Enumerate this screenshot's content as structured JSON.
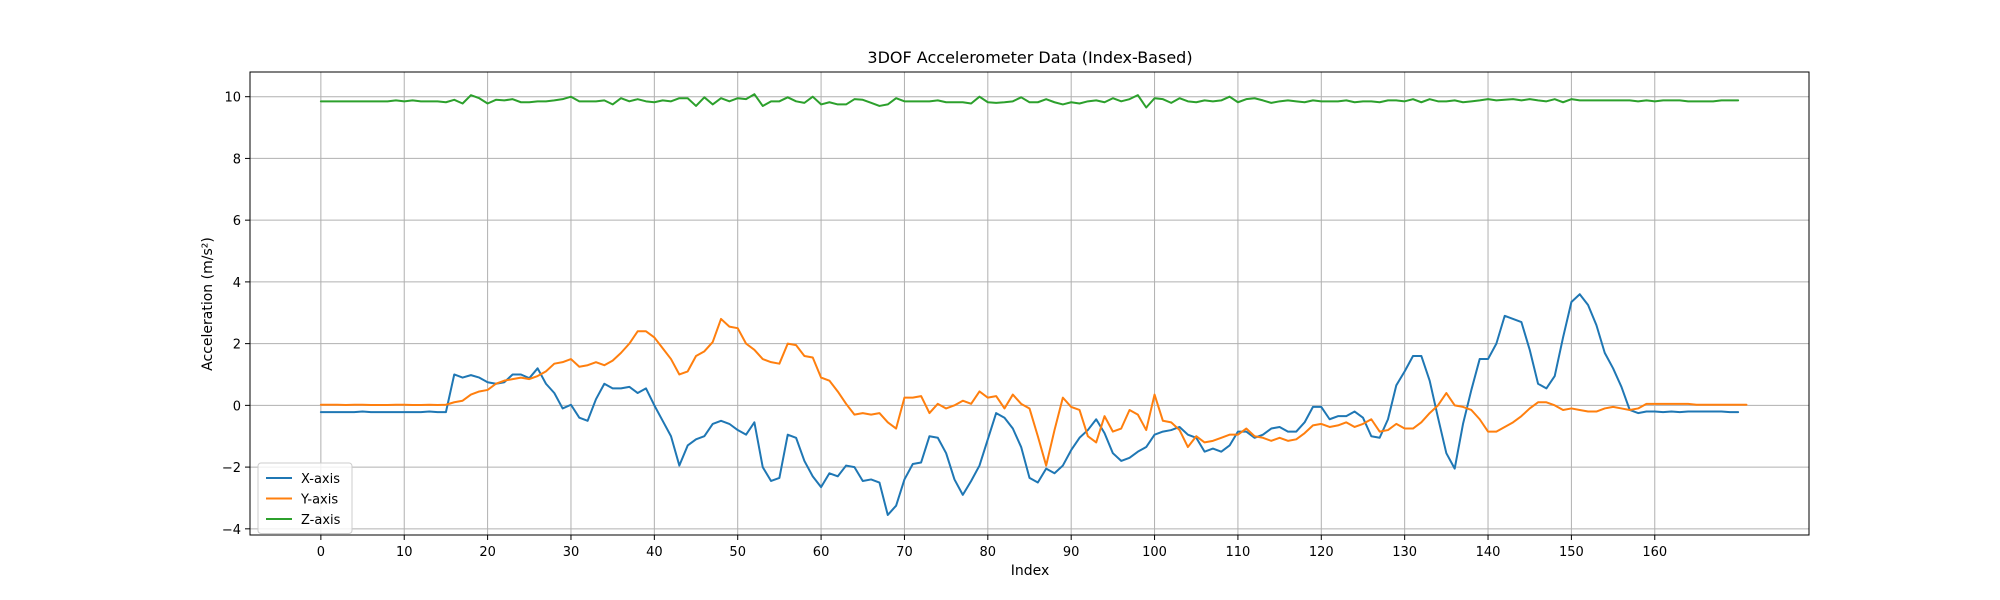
{
  "chart_data": {
    "type": "line",
    "title": "3DOF Accelerometer Data (Index-Based)",
    "xlabel": "Index",
    "ylabel": "Acceleration (m/s²)",
    "xlim": [
      -8.5,
      178.5
    ],
    "ylim": [
      -4.2,
      10.8
    ],
    "xticks": [
      0,
      10,
      20,
      30,
      40,
      50,
      60,
      70,
      80,
      90,
      100,
      110,
      120,
      130,
      140,
      150,
      160
    ],
    "yticks": [
      -4,
      -2,
      0,
      2,
      4,
      6,
      8,
      10
    ],
    "grid": true,
    "legend_position": "lower-left",
    "series": [
      {
        "name": "X-axis",
        "color": "#1f77b4",
        "values": [
          -0.22,
          -0.22,
          -0.22,
          -0.22,
          -0.22,
          -0.2,
          -0.22,
          -0.22,
          -0.22,
          -0.22,
          -0.22,
          -0.22,
          -0.22,
          -0.2,
          -0.22,
          -0.22,
          1.0,
          0.9,
          0.98,
          0.9,
          0.75,
          0.7,
          0.75,
          1.0,
          1.0,
          0.88,
          1.2,
          0.7,
          0.4,
          -0.1,
          0.02,
          -0.4,
          -0.5,
          0.2,
          0.7,
          0.55,
          0.55,
          0.6,
          0.4,
          0.55,
          0.0,
          -0.5,
          -1.0,
          -1.95,
          -1.3,
          -1.1,
          -1.0,
          -0.6,
          -0.5,
          -0.6,
          -0.8,
          -0.95,
          -0.55,
          -2.0,
          -2.45,
          -2.35,
          -0.95,
          -1.05,
          -1.8,
          -2.3,
          -2.65,
          -2.2,
          -2.3,
          -1.95,
          -2.0,
          -2.45,
          -2.4,
          -2.5,
          -3.55,
          -3.25,
          -2.4,
          -1.9,
          -1.85,
          -1.0,
          -1.05,
          -1.55,
          -2.4,
          -2.9,
          -2.45,
          -1.95,
          -1.1,
          -0.25,
          -0.4,
          -0.75,
          -1.35,
          -2.35,
          -2.5,
          -2.05,
          -2.2,
          -1.95,
          -1.45,
          -1.05,
          -0.8,
          -0.45,
          -0.9,
          -1.55,
          -1.8,
          -1.7,
          -1.5,
          -1.35,
          -0.95,
          -0.85,
          -0.8,
          -0.7,
          -0.95,
          -1.05,
          -1.5,
          -1.4,
          -1.5,
          -1.3,
          -0.85,
          -0.85,
          -1.05,
          -0.95,
          -0.75,
          -0.7,
          -0.85,
          -0.85,
          -0.55,
          -0.05,
          -0.05,
          -0.45,
          -0.35,
          -0.35,
          -0.2,
          -0.4,
          -1.0,
          -1.05,
          -0.45,
          0.65,
          1.1,
          1.6,
          1.6,
          0.8,
          -0.4,
          -1.55,
          -2.05,
          -0.6,
          0.5,
          1.5,
          1.5,
          2.0,
          2.9,
          2.8,
          2.7,
          1.8,
          0.7,
          0.55,
          0.95,
          2.2,
          3.35,
          3.6,
          3.25,
          2.6,
          1.7,
          1.2,
          0.6,
          -0.15,
          -0.25,
          -0.2,
          -0.2,
          -0.22,
          -0.2,
          -0.22,
          -0.2,
          -0.2,
          -0.2,
          -0.2,
          -0.2,
          -0.22,
          -0.22
        ]
      },
      {
        "name": "Y-axis",
        "color": "#ff7f0e",
        "values": [
          0.02,
          0.02,
          0.02,
          0.01,
          0.02,
          0.02,
          0.01,
          0.01,
          0.01,
          0.02,
          0.02,
          0.01,
          0.01,
          0.02,
          0.01,
          0.02,
          0.1,
          0.15,
          0.35,
          0.45,
          0.5,
          0.7,
          0.8,
          0.85,
          0.9,
          0.85,
          0.95,
          1.1,
          1.35,
          1.4,
          1.5,
          1.25,
          1.3,
          1.4,
          1.3,
          1.45,
          1.7,
          2.0,
          2.4,
          2.4,
          2.2,
          1.85,
          1.5,
          1.0,
          1.1,
          1.6,
          1.75,
          2.05,
          2.8,
          2.55,
          2.5,
          2.0,
          1.8,
          1.5,
          1.4,
          1.35,
          2.0,
          1.95,
          1.6,
          1.55,
          0.9,
          0.8,
          0.45,
          0.05,
          -0.3,
          -0.25,
          -0.3,
          -0.25,
          -0.55,
          -0.75,
          0.25,
          0.25,
          0.3,
          -0.25,
          0.05,
          -0.1,
          0.0,
          0.15,
          0.05,
          0.45,
          0.25,
          0.3,
          -0.1,
          0.35,
          0.05,
          -0.1,
          -1.0,
          -1.95,
          -0.8,
          0.25,
          -0.05,
          -0.15,
          -1.0,
          -1.2,
          -0.35,
          -0.85,
          -0.75,
          -0.15,
          -0.3,
          -0.8,
          0.35,
          -0.5,
          -0.55,
          -0.8,
          -1.35,
          -1.0,
          -1.2,
          -1.15,
          -1.05,
          -0.95,
          -0.95,
          -0.75,
          -1.0,
          -1.05,
          -1.15,
          -1.05,
          -1.15,
          -1.1,
          -0.9,
          -0.65,
          -0.6,
          -0.7,
          -0.65,
          -0.55,
          -0.7,
          -0.6,
          -0.45,
          -0.85,
          -0.8,
          -0.6,
          -0.75,
          -0.75,
          -0.55,
          -0.25,
          0.0,
          0.4,
          0.0,
          -0.05,
          -0.15,
          -0.45,
          -0.85,
          -0.85,
          -0.7,
          -0.55,
          -0.35,
          -0.1,
          0.1,
          0.1,
          0.0,
          -0.15,
          -0.1,
          -0.15,
          -0.2,
          -0.2,
          -0.1,
          -0.05,
          -0.1,
          -0.15,
          -0.1,
          0.05,
          0.05,
          0.05,
          0.05,
          0.05,
          0.05,
          0.02,
          0.02,
          0.02,
          0.02,
          0.02,
          0.02,
          0.02
        ]
      },
      {
        "name": "Z-axis",
        "color": "#2ca02c",
        "values": [
          9.85,
          9.85,
          9.85,
          9.85,
          9.85,
          9.85,
          9.85,
          9.85,
          9.85,
          9.88,
          9.85,
          9.88,
          9.85,
          9.85,
          9.85,
          9.82,
          9.9,
          9.78,
          10.05,
          9.95,
          9.78,
          9.9,
          9.88,
          9.92,
          9.82,
          9.82,
          9.85,
          9.85,
          9.88,
          9.92,
          10.0,
          9.85,
          9.85,
          9.85,
          9.88,
          9.75,
          9.95,
          9.85,
          9.92,
          9.85,
          9.82,
          9.88,
          9.85,
          9.95,
          9.95,
          9.7,
          9.98,
          9.75,
          9.95,
          9.85,
          9.95,
          9.92,
          10.08,
          9.7,
          9.85,
          9.85,
          9.98,
          9.85,
          9.8,
          10.0,
          9.75,
          9.82,
          9.75,
          9.75,
          9.92,
          9.9,
          9.8,
          9.7,
          9.75,
          9.95,
          9.85,
          9.85,
          9.85,
          9.85,
          9.88,
          9.82,
          9.82,
          9.82,
          9.78,
          10.0,
          9.82,
          9.8,
          9.82,
          9.85,
          9.98,
          9.82,
          9.82,
          9.92,
          9.82,
          9.75,
          9.82,
          9.78,
          9.85,
          9.88,
          9.82,
          9.95,
          9.85,
          9.92,
          10.05,
          9.65,
          9.95,
          9.92,
          9.8,
          9.95,
          9.85,
          9.82,
          9.88,
          9.85,
          9.88,
          10.0,
          9.82,
          9.92,
          9.95,
          9.88,
          9.8,
          9.85,
          9.88,
          9.85,
          9.82,
          9.88,
          9.85,
          9.85,
          9.85,
          9.88,
          9.82,
          9.85,
          9.85,
          9.82,
          9.88,
          9.88,
          9.85,
          9.92,
          9.82,
          9.92,
          9.85,
          9.85,
          9.88,
          9.82,
          9.85,
          9.88,
          9.92,
          9.88,
          9.9,
          9.92,
          9.88,
          9.92,
          9.88,
          9.85,
          9.92,
          9.82,
          9.92,
          9.88,
          9.88,
          9.88,
          9.88,
          9.88,
          9.88,
          9.88,
          9.85,
          9.88,
          9.85,
          9.88,
          9.88,
          9.88,
          9.85,
          9.85,
          9.85,
          9.85,
          9.88,
          9.88,
          9.88
        ]
      }
    ]
  }
}
